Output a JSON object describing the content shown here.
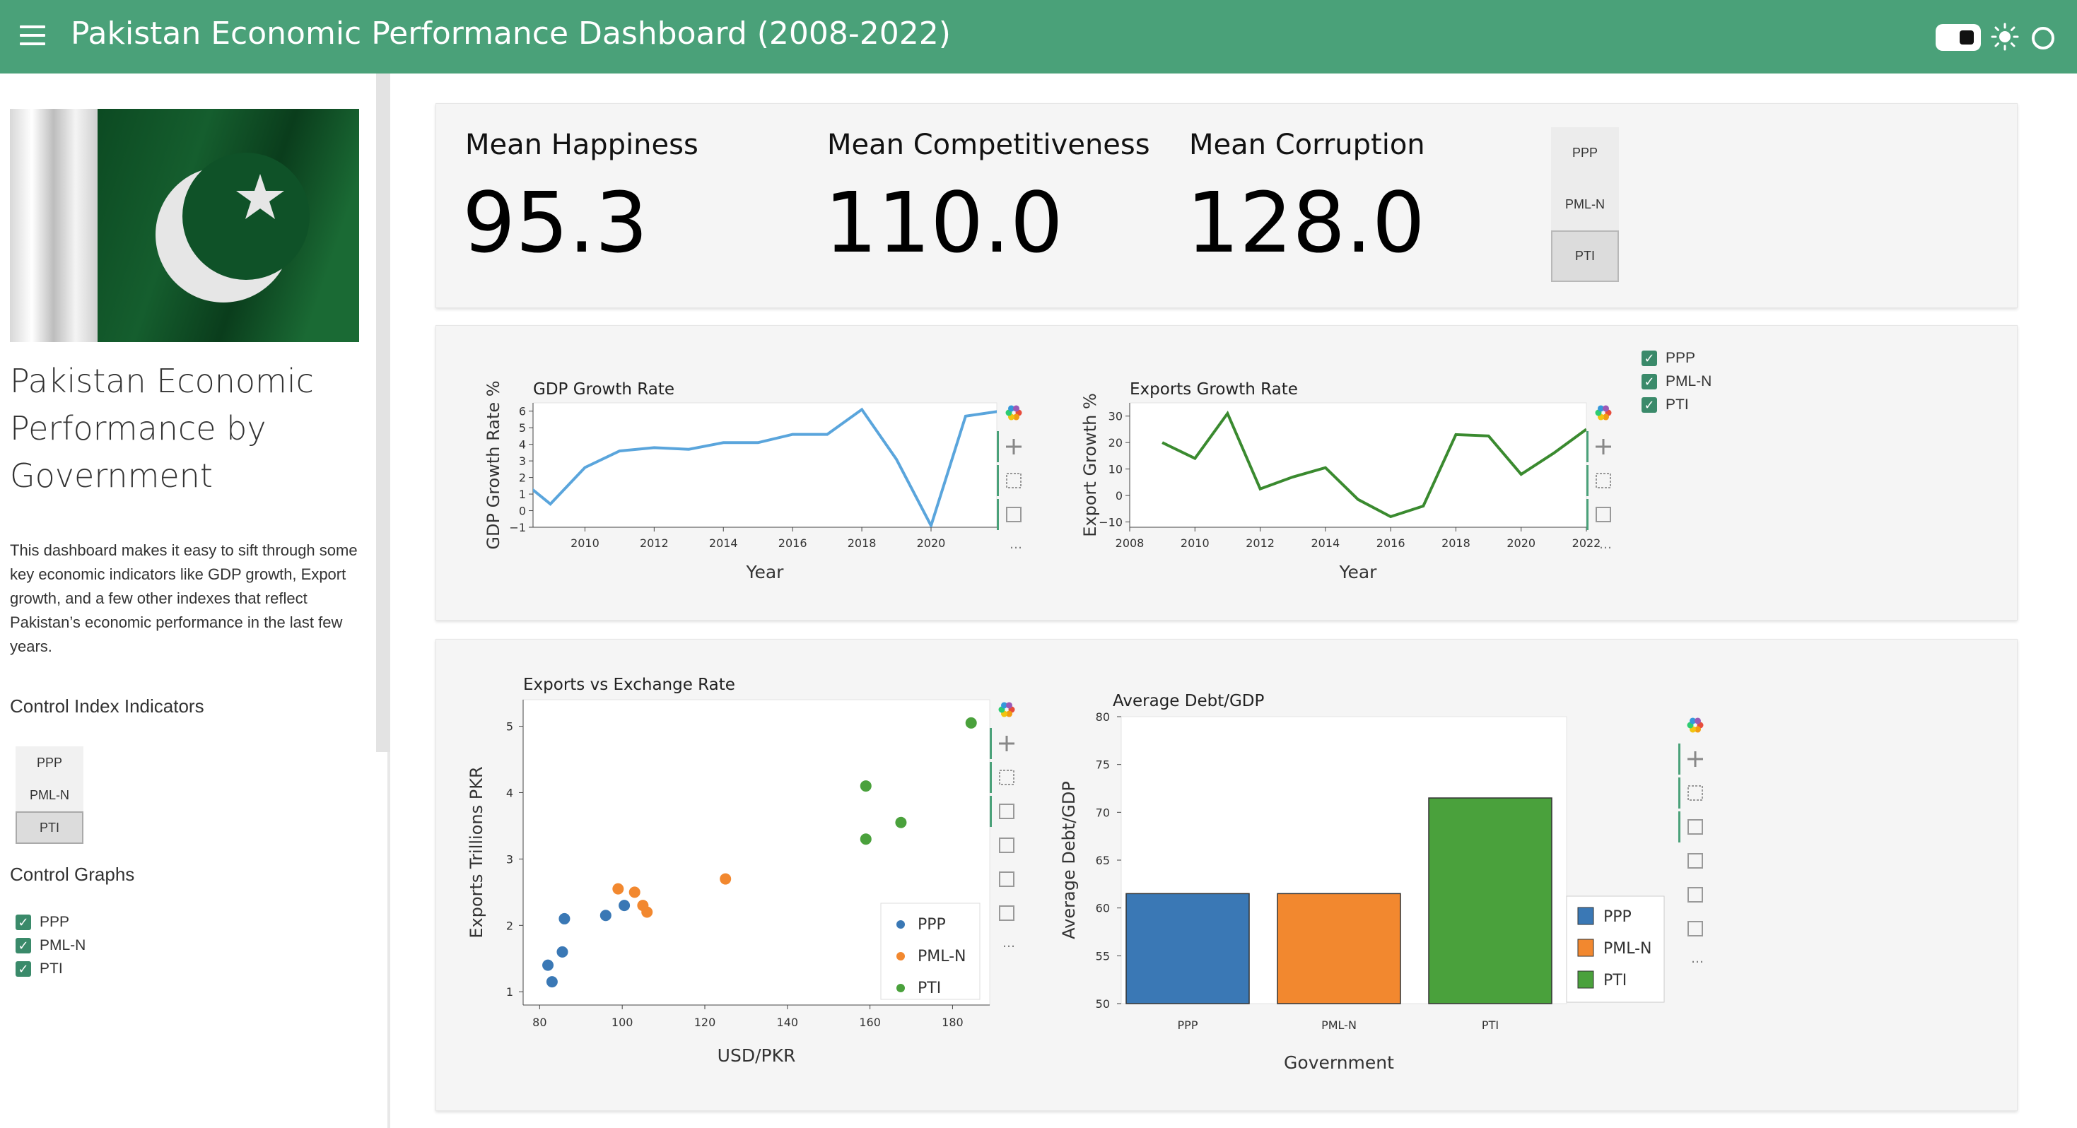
{
  "header": {
    "title": "Pakistan Economic Performance Dashboard (2008-2022)"
  },
  "sidebar": {
    "heading": "Pakistan Economic Performance by Government",
    "description": "This dashboard makes it easy to sift through some key economic indicators like GDP growth, Export growth, and a few other indexes that reflect Pakistan’s economic performance in the last few years.",
    "control_index_label": "Control Index Indicators",
    "index_buttons": [
      "PPP",
      "PML-N",
      "PTI"
    ],
    "index_selected": "PTI",
    "control_graphs_label": "Control Graphs",
    "graph_checks": [
      {
        "label": "PPP",
        "checked": true
      },
      {
        "label": "PML-N",
        "checked": true
      },
      {
        "label": "PTI",
        "checked": true
      }
    ]
  },
  "kpis": [
    {
      "title": "Mean Happiness",
      "value": "95.3"
    },
    {
      "title": "Mean Competitiveness",
      "value": "110.0"
    },
    {
      "title": "Mean Corruption",
      "value": "128.0"
    }
  ],
  "kpi_buttons": [
    "PPP",
    "PML-N",
    "PTI"
  ],
  "kpi_selected": "PTI",
  "series_checks": [
    {
      "label": "PPP",
      "checked": true
    },
    {
      "label": "PML-N",
      "checked": true
    },
    {
      "label": "PTI",
      "checked": true
    }
  ],
  "colors": {
    "header": "#4aa179",
    "ppp": "#3a78b5",
    "pmln": "#f2882f",
    "pti": "#4aa13c",
    "gdp_line": "#5aa5dc",
    "exports_line": "#3a8a2f"
  },
  "chart_data": [
    {
      "type": "line",
      "title": "GDP Growth Rate",
      "xlabel": "Year",
      "ylabel": "GDP Growth Rate %",
      "x": [
        2008,
        2009,
        2010,
        2011,
        2012,
        2013,
        2014,
        2015,
        2016,
        2017,
        2018,
        2019,
        2020,
        2021,
        2022
      ],
      "y": [
        2.1,
        0.4,
        2.6,
        3.6,
        3.8,
        3.7,
        4.1,
        4.1,
        4.6,
        4.6,
        6.1,
        3.1,
        -0.9,
        5.7,
        6.0
      ],
      "xlim": [
        2008.5,
        2021.9
      ],
      "ylim": [
        -1,
        6.5
      ],
      "xticks": [
        "2010",
        "2012",
        "2014",
        "2016",
        "2018",
        "2020"
      ],
      "yticks": [
        "−1",
        "0",
        "1",
        "2",
        "3",
        "4",
        "5",
        "6"
      ]
    },
    {
      "type": "line",
      "title": "Exports Growth Rate",
      "xlabel": "Year",
      "ylabel": "Export Growth %",
      "x": [
        2009,
        2010,
        2011,
        2012,
        2013,
        2014,
        2015,
        2016,
        2017,
        2018,
        2019,
        2020,
        2021,
        2022
      ],
      "y": [
        20,
        14,
        31,
        2.5,
        7,
        10.5,
        -1.5,
        -8,
        -4,
        23,
        22.5,
        8,
        16,
        25
      ],
      "xlim": [
        2008,
        2022
      ],
      "ylim": [
        -12,
        35
      ],
      "xticks": [
        "2008",
        "2010",
        "2012",
        "2014",
        "2016",
        "2018",
        "2020",
        "2022"
      ],
      "yticks": [
        "−10",
        "0",
        "10",
        "20",
        "30"
      ]
    },
    {
      "type": "scatter",
      "title": "Exports vs Exchange Rate",
      "xlabel": "USD/PKR",
      "ylabel": "Exports Trillions PKR",
      "xlim": [
        76,
        189
      ],
      "ylim": [
        0.8,
        5.4
      ],
      "xticks": [
        "80",
        "100",
        "120",
        "140",
        "160",
        "180"
      ],
      "yticks": [
        "1",
        "2",
        "3",
        "4",
        "5"
      ],
      "series": [
        {
          "name": "PPP",
          "points": [
            [
              82,
              1.4
            ],
            [
              83,
              1.15
            ],
            [
              85.5,
              1.6
            ],
            [
              86,
              2.1
            ],
            [
              96,
              2.15
            ],
            [
              100.5,
              2.3
            ]
          ]
        },
        {
          "name": "PML-N",
          "points": [
            [
              99,
              2.55
            ],
            [
              103,
              2.5
            ],
            [
              105,
              2.3
            ],
            [
              106,
              2.2
            ],
            [
              125,
              2.7
            ]
          ]
        },
        {
          "name": "PTI",
          "points": [
            [
              159,
              3.3
            ],
            [
              159,
              4.1
            ],
            [
              167.5,
              3.55
            ],
            [
              184.5,
              5.05
            ]
          ]
        }
      ]
    },
    {
      "type": "bar",
      "title": "Average Debt/GDP",
      "xlabel": "Government",
      "ylabel": "Average Debt/GDP",
      "categories": [
        "PPP",
        "PML-N",
        "PTI"
      ],
      "values": [
        61.5,
        61.5,
        71.5
      ],
      "ylim": [
        50,
        80
      ],
      "yticks": [
        "50",
        "55",
        "60",
        "65",
        "70",
        "75",
        "80"
      ]
    }
  ],
  "legend": [
    "PPP",
    "PML-N",
    "PTI"
  ]
}
